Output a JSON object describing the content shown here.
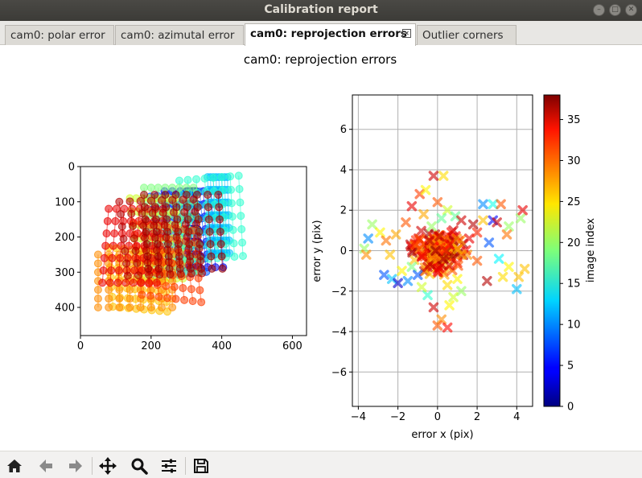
{
  "window": {
    "title": "Calibration report"
  },
  "tabs": [
    {
      "label": "cam0: polar error",
      "active": false
    },
    {
      "label": "cam0: azimutal error",
      "active": false
    },
    {
      "label": "cam0: reprojection errors",
      "active": true
    },
    {
      "label": "Outlier corners",
      "active": false
    }
  ],
  "figure": {
    "suptitle": "cam0: reprojection errors",
    "colormap": "jet",
    "colors": {
      "grid": "#b0b0b0",
      "axis": "#000000"
    }
  },
  "chart_data": [
    {
      "type": "scatter",
      "name": "corner-positions",
      "xlim": [
        0,
        640
      ],
      "ylim": [
        480,
        0
      ],
      "y_inverted": true,
      "grid": false,
      "xticks": [
        "0",
        "200",
        "400",
        "600"
      ],
      "yticks": [
        "0",
        "100",
        "200",
        "300",
        "400"
      ],
      "marker": "circle",
      "color_by": "image index",
      "series": [
        {
          "image_index": 0,
          "grid_origin": [
            300,
            70
          ],
          "col_step": [
            4,
            0
          ],
          "row_step": [
            1,
            36
          ]
        },
        {
          "image_index": 4,
          "grid_origin": [
            238,
            70
          ],
          "col_step": [
            22,
            0
          ],
          "row_step": [
            2,
            36
          ]
        },
        {
          "image_index": 8,
          "grid_origin": [
            198,
            85
          ],
          "col_step": [
            20,
            -2
          ],
          "row_step": [
            3,
            38
          ]
        },
        {
          "image_index": 12,
          "grid_origin": [
            360,
            30
          ],
          "col_step": [
            8,
            0
          ],
          "row_step": [
            1,
            36
          ]
        },
        {
          "image_index": 16,
          "grid_origin": [
            280,
            40
          ],
          "col_step": [
            24,
            -2
          ],
          "row_step": [
            2,
            38
          ]
        },
        {
          "image_index": 19,
          "grid_origin": [
            180,
            60
          ],
          "col_step": [
            20,
            0
          ],
          "row_step": [
            3,
            40
          ]
        },
        {
          "image_index": 22,
          "grid_origin": [
            140,
            90
          ],
          "col_step": [
            18,
            0
          ],
          "row_step": [
            4,
            38
          ]
        },
        {
          "image_index": 26,
          "grid_origin": [
            80,
            230
          ],
          "col_step": [
            22,
            2
          ],
          "row_step": [
            2,
            28
          ]
        },
        {
          "image_index": 28,
          "grid_origin": [
            50,
            250
          ],
          "col_step": [
            30,
            0
          ],
          "row_step": [
            0,
            25
          ]
        },
        {
          "image_index": 31,
          "grid_origin": [
            150,
            160
          ],
          "col_step": [
            24,
            3
          ],
          "row_step": [
            4,
            34
          ]
        },
        {
          "image_index": 34,
          "grid_origin": [
            80,
            120
          ],
          "col_step": [
            22,
            0
          ],
          "row_step": [
            -3,
            35
          ]
        },
        {
          "image_index": 36,
          "grid_origin": [
            110,
            100
          ],
          "col_step": [
            30,
            -1
          ],
          "row_step": [
            4,
            35
          ]
        },
        {
          "image_index": 37,
          "grid_origin": [
            180,
            80
          ],
          "col_step": [
            30,
            0
          ],
          "row_step": [
            2,
            35
          ]
        }
      ],
      "grid_shape": [
        8,
        7
      ]
    },
    {
      "type": "scatter",
      "name": "reprojection-errors",
      "xlabel": "error x (pix)",
      "ylabel": "error y (pix)",
      "xlim": [
        -4.3,
        4.8
      ],
      "ylim": [
        -7.7,
        7.7
      ],
      "grid": true,
      "xticks": [
        "-4",
        "-2",
        "0",
        "2",
        "4"
      ],
      "yticks": [
        "-6",
        "-4",
        "-2",
        "0",
        "2",
        "4",
        "6"
      ],
      "marker": "x",
      "color_by": "image index",
      "points": [
        {
          "x": -3.7,
          "y": 0.1,
          "i": 20
        },
        {
          "x": -3.5,
          "y": 0.6,
          "i": 10
        },
        {
          "x": -3.3,
          "y": 1.3,
          "i": 20
        },
        {
          "x": -3.6,
          "y": -0.2,
          "i": 28
        },
        {
          "x": -2.9,
          "y": 0.9,
          "i": 24
        },
        {
          "x": -2.6,
          "y": 0.5,
          "i": 29
        },
        {
          "x": -2.7,
          "y": -1.2,
          "i": 8
        },
        {
          "x": -2.3,
          "y": -1.4,
          "i": 12
        },
        {
          "x": -2.0,
          "y": -1.6,
          "i": 3
        },
        {
          "x": -1.8,
          "y": -1.0,
          "i": 24
        },
        {
          "x": -1.5,
          "y": -1.5,
          "i": 10
        },
        {
          "x": -1.3,
          "y": -0.8,
          "i": 19
        },
        {
          "x": -2.4,
          "y": -0.2,
          "i": 26
        },
        {
          "x": -2.1,
          "y": 0.8,
          "i": 27
        },
        {
          "x": -1.6,
          "y": 1.4,
          "i": 30
        },
        {
          "x": -1.3,
          "y": 2.2,
          "i": 34
        },
        {
          "x": -0.9,
          "y": 2.8,
          "i": 31
        },
        {
          "x": -0.6,
          "y": 3.0,
          "i": 24
        },
        {
          "x": -0.2,
          "y": 3.7,
          "i": 35
        },
        {
          "x": 0.3,
          "y": 3.7,
          "i": 25
        },
        {
          "x": 0.0,
          "y": 2.4,
          "i": 30
        },
        {
          "x": 0.5,
          "y": 2.0,
          "i": 22
        },
        {
          "x": 0.9,
          "y": 1.7,
          "i": 18
        },
        {
          "x": 1.2,
          "y": 1.5,
          "i": 35
        },
        {
          "x": 1.8,
          "y": 1.3,
          "i": 36
        },
        {
          "x": 2.3,
          "y": 1.5,
          "i": 26
        },
        {
          "x": 2.3,
          "y": 2.3,
          "i": 10
        },
        {
          "x": 2.8,
          "y": 2.3,
          "i": 15
        },
        {
          "x": 3.2,
          "y": 2.3,
          "i": 30
        },
        {
          "x": 2.8,
          "y": 1.5,
          "i": 5
        },
        {
          "x": 3.0,
          "y": 1.4,
          "i": 35
        },
        {
          "x": 3.6,
          "y": 1.2,
          "i": 20
        },
        {
          "x": 4.2,
          "y": 1.6,
          "i": 20
        },
        {
          "x": 4.3,
          "y": 2.0,
          "i": 34
        },
        {
          "x": 3.5,
          "y": 0.8,
          "i": 29
        },
        {
          "x": 3.1,
          "y": -0.4,
          "i": 14
        },
        {
          "x": 3.6,
          "y": -0.8,
          "i": 24
        },
        {
          "x": 3.3,
          "y": -1.3,
          "i": 25
        },
        {
          "x": 4.1,
          "y": -1.3,
          "i": 26
        },
        {
          "x": 4.0,
          "y": -1.9,
          "i": 12
        },
        {
          "x": 4.4,
          "y": -0.9,
          "i": 26
        },
        {
          "x": 2.5,
          "y": -1.5,
          "i": 36
        },
        {
          "x": 2.0,
          "y": -0.5,
          "i": 30
        },
        {
          "x": 1.5,
          "y": -0.2,
          "i": 28
        },
        {
          "x": 1.0,
          "y": -1.4,
          "i": 24
        },
        {
          "x": 1.2,
          "y": -2.0,
          "i": 20
        },
        {
          "x": 0.5,
          "y": -1.7,
          "i": 25
        },
        {
          "x": 0.8,
          "y": -2.3,
          "i": 22
        },
        {
          "x": 0.6,
          "y": -2.7,
          "i": 24
        },
        {
          "x": -0.2,
          "y": -2.8,
          "i": 35
        },
        {
          "x": 0.2,
          "y": -3.4,
          "i": 28
        },
        {
          "x": 0.0,
          "y": -3.7,
          "i": 30
        },
        {
          "x": 0.5,
          "y": -3.8,
          "i": 33
        },
        {
          "x": -0.5,
          "y": -2.2,
          "i": 16
        },
        {
          "x": -0.8,
          "y": -1.8,
          "i": 22
        },
        {
          "x": -1.0,
          "y": -1.2,
          "i": 8
        },
        {
          "x": 2.6,
          "y": 0.4,
          "i": 8
        },
        {
          "x": 1.6,
          "y": 0.6,
          "i": 34
        },
        {
          "x": 2.0,
          "y": 0.9,
          "i": 32
        },
        {
          "x": -0.3,
          "y": 1.2,
          "i": 20
        },
        {
          "x": 0.2,
          "y": 1.6,
          "i": 18
        },
        {
          "x": -0.7,
          "y": 1.8,
          "i": 27
        },
        {
          "x": 0.8,
          "y": 1.0,
          "i": 35
        },
        {
          "x": -0.4,
          "y": 0.5,
          "i": 36
        },
        {
          "x": 0.3,
          "y": -0.4,
          "i": 37
        },
        {
          "x": -0.8,
          "y": -0.3,
          "i": 34
        },
        {
          "x": 0.6,
          "y": 0.3,
          "i": 33
        },
        {
          "x": -0.1,
          "y": 0.0,
          "i": 37
        },
        {
          "x": -1.1,
          "y": 0.3,
          "i": 31
        },
        {
          "x": 1.0,
          "y": -0.6,
          "i": 32
        },
        {
          "x": 0.1,
          "y": 0.7,
          "i": 36
        },
        {
          "x": -0.5,
          "y": -0.8,
          "i": 35
        }
      ]
    }
  ],
  "colorbar": {
    "label": "image index",
    "min": 0,
    "max": 38,
    "ticks": [
      "0",
      "5",
      "10",
      "15",
      "20",
      "25",
      "30",
      "35"
    ]
  },
  "toolbar": {
    "buttons": [
      {
        "name": "home-button",
        "icon": "home-icon",
        "title": "Home"
      },
      {
        "name": "back-button",
        "icon": "arrow-left-icon",
        "title": "Back"
      },
      {
        "name": "forward-button",
        "icon": "arrow-right-icon",
        "title": "Forward"
      },
      {
        "name": "pan-button",
        "icon": "move-icon",
        "title": "Pan"
      },
      {
        "name": "zoom-button",
        "icon": "magnifier-icon",
        "title": "Zoom"
      },
      {
        "name": "subplots-button",
        "icon": "sliders-icon",
        "title": "Configure subplots"
      },
      {
        "name": "save-button",
        "icon": "floppy-disk-icon",
        "title": "Save"
      }
    ]
  }
}
